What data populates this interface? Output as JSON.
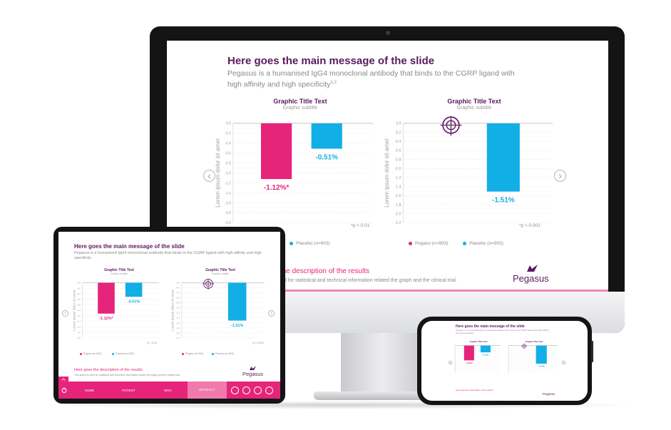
{
  "slide": {
    "title": "Here goes the main message of the slide",
    "subtitle": "Pegasus is a humanised IgG4 monoclonal antibody that binds to the CGRP ligand with high affinity and high specificity",
    "subtitle_ref": "1,2",
    "description_prefix": "Here goes the",
    "description_highlight": "description of the results",
    "description_sub": "This space is used for statistical and technical information related the graph and the clinical trial.",
    "logo": "Pegasus",
    "prev_arrow": "‹",
    "next_arrow": "›"
  },
  "charts": [
    {
      "title": "Graphic Title Text",
      "subtitle": "Graphic subtitle",
      "ylabel": "Lorem ipsum dolor sit amet",
      "yticks": [
        "0.0",
        "-0.2",
        "-0.4",
        "-0.6",
        "-0.8",
        "-1.0",
        "-1.2",
        "-1.4",
        "-1.6",
        "-1.8",
        "-2.0"
      ],
      "note": "*p < 0.01",
      "labels": [
        "-1.12%*",
        "-0.51%"
      ],
      "values": [
        -1.12,
        -0.51
      ],
      "ymin": -2.0,
      "show_target": false
    },
    {
      "title": "Graphic Title Text",
      "subtitle": "Graphic subtitle",
      "ylabel": "Lorem ipsum dolor sit amet",
      "yticks": [
        "0.0",
        "-0.2",
        "-0.4",
        "-0.6",
        "-0.8",
        "-1.0",
        "-1.2",
        "-1.4",
        "-1.6",
        "-1.8",
        "-2.0",
        "-2.2"
      ],
      "note": "*p < 0.001",
      "labels": [
        "",
        "-1.51%"
      ],
      "values": [
        null,
        -1.51
      ],
      "ymin": -2.2,
      "show_target": true
    }
  ],
  "chart_data": [
    {
      "type": "bar",
      "categories": [
        "Pegaso (n=903)",
        "Placebo (n=903)"
      ],
      "values": [
        -1.12,
        -0.51
      ],
      "title": "Graphic Title Text",
      "subtitle": "Graphic subtitle",
      "ylabel": "Lorem ipsum dolor sit amet",
      "ylim": [
        -2.0,
        0.0
      ],
      "data_labels": [
        "-1.12%*",
        "-0.51%"
      ],
      "annotation": "*p < 0.01"
    },
    {
      "type": "bar",
      "categories": [
        "Pegaso (n=903)",
        "Placebo (n=903)"
      ],
      "values": [
        null,
        -1.51
      ],
      "title": "Graphic Title Text",
      "subtitle": "Graphic subtitle",
      "ylabel": "Lorem ipsum dolor sit amet",
      "ylim": [
        -2.2,
        0.0
      ],
      "data_labels": [
        "",
        "-1.51%"
      ],
      "annotation": "*p < 0.001"
    }
  ],
  "legend": {
    "pegaso": "Pegaso (n=903)",
    "placebo": "Placebo (n=903)"
  },
  "tablet_nav": {
    "home": "HOME",
    "patient": "PATIENT",
    "moa": "MOA",
    "efficacy": "EFFICACY"
  },
  "colors": {
    "pegaso": "#e5247a",
    "placebo": "#12aee6",
    "title": "#5b1a5f",
    "nav": "#e5247a"
  },
  "icons": {
    "target": "crosshair-target-icon",
    "power": "power-icon",
    "up": "chevron-up-icon",
    "logo": "pegasus-wing-icon"
  }
}
